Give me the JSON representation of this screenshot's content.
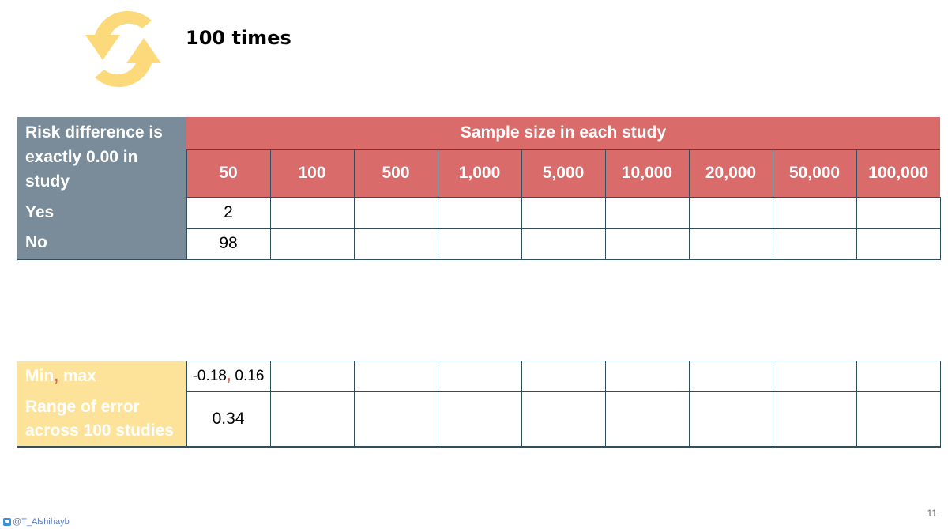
{
  "title": "100 times",
  "table1": {
    "label_header": "Risk difference is exactly 0.00 in study",
    "group_header": "Sample size in each study",
    "sizes": [
      "50",
      "100",
      "500",
      "1,000",
      "5,000",
      "10,000",
      "20,000",
      "50,000",
      "100,000"
    ],
    "rows": [
      {
        "label": "Yes",
        "values": [
          "2",
          "",
          "",
          "",
          "",
          "",
          "",
          "",
          ""
        ]
      },
      {
        "label": "No",
        "values": [
          "98",
          "",
          "",
          "",
          "",
          "",
          "",
          "",
          ""
        ]
      }
    ]
  },
  "table2": {
    "minmax": {
      "label_a": "Min",
      "sep": ",",
      "label_b": " max",
      "val_a": "-0.18",
      "val_sep": ",",
      "val_b": " 0.16"
    },
    "range": {
      "label": "Range of error across 100 studies",
      "value": "0.34"
    }
  },
  "footer": {
    "handle": "@T_Alshihayb"
  },
  "page_number": "11",
  "colors": {
    "slate": "#7a8c9a",
    "red": "#d96b6b",
    "yellow": "#fde39a",
    "icon": "#fcd97a"
  }
}
